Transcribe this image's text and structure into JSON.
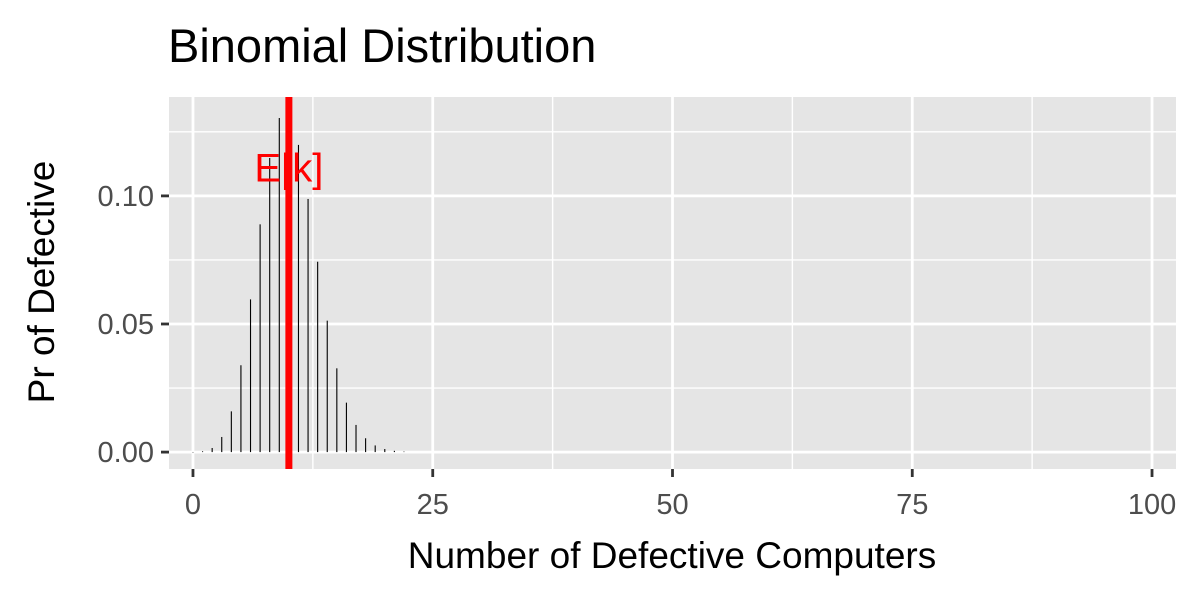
{
  "chart_data": {
    "type": "bar",
    "title": "Binomial Distribution",
    "xlabel": "Number of Defective Computers",
    "ylabel": "Pr of Defective",
    "xlim": [
      -2.5,
      102.5
    ],
    "ylim": [
      -0.0066,
      0.1386
    ],
    "x_ticks": [
      {
        "value": 0,
        "label": "0"
      },
      {
        "value": 25,
        "label": "25"
      },
      {
        "value": 50,
        "label": "50"
      },
      {
        "value": 75,
        "label": "75"
      },
      {
        "value": 100,
        "label": "100"
      }
    ],
    "y_ticks": [
      {
        "value": 0,
        "label": "0.00"
      },
      {
        "value": 0.05,
        "label": "0.05"
      },
      {
        "value": 0.1,
        "label": "0.10"
      }
    ],
    "grid": true,
    "series": [
      {
        "x": [
          0,
          1,
          2,
          3,
          4,
          5,
          6,
          7,
          8,
          9,
          10,
          11,
          12,
          13,
          14,
          15,
          16,
          17,
          18,
          19,
          20,
          21,
          22
        ],
        "values": [
          3e-05,
          0.0003,
          0.0016,
          0.0059,
          0.0159,
          0.0339,
          0.0596,
          0.0889,
          0.1148,
          0.1304,
          0.1319,
          0.1199,
          0.0988,
          0.0743,
          0.0513,
          0.0327,
          0.0193,
          0.0106,
          0.0054,
          0.0026,
          0.0012,
          0.0005,
          0.0002
        ]
      }
    ],
    "annotation": {
      "type": "vline",
      "x": 10,
      "label": "E[k]",
      "label_y": 0.111
    },
    "colors": {
      "panel": "#e5e5e5",
      "grid": "#ffffff",
      "bars": "#000000",
      "annotation": "#ff0000",
      "tick_label": "#4d4d4d"
    }
  }
}
